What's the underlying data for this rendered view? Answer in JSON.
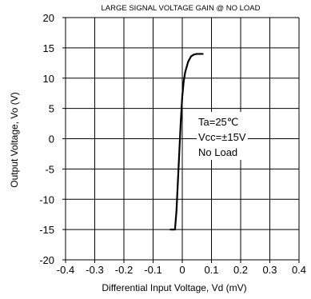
{
  "chart_data": {
    "type": "line",
    "title": "LARGE SIGNAL VOLTAGE GAIN @ NO LOAD",
    "xlabel": "Differential Input Voltage, Vd (mV)",
    "ylabel": "Output Voltage, Vo (V)",
    "xlim": [
      -0.4,
      0.4
    ],
    "ylim": [
      -20,
      20
    ],
    "x_ticks": [
      "-0.4",
      "-0.3",
      "-0.2",
      "-0.1",
      "0",
      "0.1",
      "0.2",
      "0.3",
      "0.4"
    ],
    "y_ticks": [
      "20",
      "15",
      "10",
      "5",
      "0",
      "-5",
      "-10",
      "-15",
      "-20"
    ],
    "grid": true,
    "series": [
      {
        "x": [
          -0.04,
          -0.025,
          -0.02,
          -0.015,
          -0.01,
          -0.005,
          0.0,
          0.005,
          0.01,
          0.02,
          0.03,
          0.04,
          0.05,
          0.06,
          0.07
        ],
        "y": [
          -15,
          -15,
          -12,
          -7,
          -2,
          3,
          7,
          9.5,
          11,
          12.7,
          13.6,
          13.9,
          14.0,
          14.0,
          14.0
        ]
      }
    ],
    "annotations": [
      "Ta=25℃",
      "Vcc=±15V",
      "No Load"
    ]
  }
}
